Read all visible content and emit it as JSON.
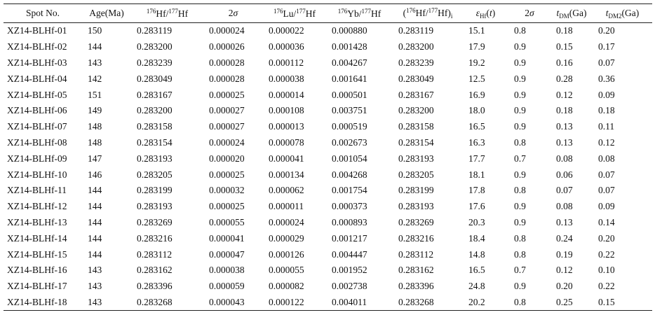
{
  "table": {
    "header": [
      [
        {
          "text": "Spot No."
        }
      ],
      [
        {
          "text": "Age(Ma)"
        }
      ],
      [
        {
          "text": "176",
          "style": "sup"
        },
        {
          "text": "Hf/"
        },
        {
          "text": "177",
          "style": "sup"
        },
        {
          "text": "Hf"
        }
      ],
      [
        {
          "text": "2"
        },
        {
          "text": "σ",
          "style": "i"
        }
      ],
      [
        {
          "text": "176",
          "style": "sup"
        },
        {
          "text": "Lu/"
        },
        {
          "text": "177",
          "style": "sup"
        },
        {
          "text": "Hf"
        }
      ],
      [
        {
          "text": "176",
          "style": "sup"
        },
        {
          "text": "Yb/"
        },
        {
          "text": "177",
          "style": "sup"
        },
        {
          "text": "Hf"
        }
      ],
      [
        {
          "text": "("
        },
        {
          "text": "176",
          "style": "sup"
        },
        {
          "text": "Hf/"
        },
        {
          "text": "177",
          "style": "sup"
        },
        {
          "text": "Hf)"
        },
        {
          "text": "i",
          "style": "sub"
        }
      ],
      [
        {
          "text": "ε",
          "style": "i"
        },
        {
          "text": "Hf",
          "style": "sub"
        },
        {
          "text": "("
        },
        {
          "text": "t",
          "style": "i"
        },
        {
          "text": ")"
        }
      ],
      [
        {
          "text": "2"
        },
        {
          "text": "σ",
          "style": "i"
        }
      ],
      [
        {
          "text": "t",
          "style": "i"
        },
        {
          "text": "DM",
          "style": "sub"
        },
        {
          "text": "(Ga)"
        }
      ],
      [
        {
          "text": "t",
          "style": "i"
        },
        {
          "text": "DM2",
          "style": "sub"
        },
        {
          "text": "(Ga)"
        }
      ]
    ],
    "rows": [
      [
        "XZ14-BLHf-01",
        "150",
        "0.283119",
        "0.000024",
        "0.000022",
        "0.000880",
        "0.283119",
        "15.1",
        "0.8",
        "0.18",
        "0.20"
      ],
      [
        "XZ14-BLHf-02",
        "144",
        "0.283200",
        "0.000026",
        "0.000036",
        "0.001428",
        "0.283200",
        "17.9",
        "0.9",
        "0.15",
        "0.17"
      ],
      [
        "XZ14-BLHf-03",
        "143",
        "0.283239",
        "0.000028",
        "0.000112",
        "0.004267",
        "0.283239",
        "19.2",
        "0.9",
        "0.16",
        "0.07"
      ],
      [
        "XZ14-BLHf-04",
        "142",
        "0.283049",
        "0.000028",
        "0.000038",
        "0.001641",
        "0.283049",
        "12.5",
        "0.9",
        "0.28",
        "0.36"
      ],
      [
        "XZ14-BLHf-05",
        "151",
        "0.283167",
        "0.000025",
        "0.000014",
        "0.000501",
        "0.283167",
        "16.9",
        "0.9",
        "0.12",
        "0.09"
      ],
      [
        "XZ14-BLHf-06",
        "149",
        "0.283200",
        "0.000027",
        "0.000108",
        "0.003751",
        "0.283200",
        "18.0",
        "0.9",
        "0.18",
        "0.18"
      ],
      [
        "XZ14-BLHf-07",
        "148",
        "0.283158",
        "0.000027",
        "0.000013",
        "0.000519",
        "0.283158",
        "16.5",
        "0.9",
        "0.13",
        "0.11"
      ],
      [
        "XZ14-BLHf-08",
        "148",
        "0.283154",
        "0.000024",
        "0.000078",
        "0.002673",
        "0.283154",
        "16.3",
        "0.8",
        "0.13",
        "0.12"
      ],
      [
        "XZ14-BLHf-09",
        "147",
        "0.283193",
        "0.000020",
        "0.000041",
        "0.001054",
        "0.283193",
        "17.7",
        "0.7",
        "0.08",
        "0.08"
      ],
      [
        "XZ14-BLHf-10",
        "146",
        "0.283205",
        "0.000025",
        "0.000134",
        "0.004268",
        "0.283205",
        "18.1",
        "0.9",
        "0.06",
        "0.07"
      ],
      [
        "XZ14-BLHf-11",
        "144",
        "0.283199",
        "0.000032",
        "0.000062",
        "0.001754",
        "0.283199",
        "17.8",
        "0.8",
        "0.07",
        "0.07"
      ],
      [
        "XZ14-BLHf-12",
        "144",
        "0.283193",
        "0.000025",
        "0.000011",
        "0.000373",
        "0.283193",
        "17.6",
        "0.9",
        "0.08",
        "0.09"
      ],
      [
        "XZ14-BLHf-13",
        "144",
        "0.283269",
        "0.000055",
        "0.000024",
        "0.000893",
        "0.283269",
        "20.3",
        "0.9",
        "0.13",
        "0.14"
      ],
      [
        "XZ14-BLHf-14",
        "144",
        "0.283216",
        "0.000041",
        "0.000029",
        "0.001217",
        "0.283216",
        "18.4",
        "0.8",
        "0.24",
        "0.20"
      ],
      [
        "XZ14-BLHf-15",
        "144",
        "0.283112",
        "0.000047",
        "0.000126",
        "0.004447",
        "0.283112",
        "14.8",
        "0.8",
        "0.19",
        "0.22"
      ],
      [
        "XZ14-BLHf-16",
        "143",
        "0.283162",
        "0.000038",
        "0.000055",
        "0.001952",
        "0.283162",
        "16.5",
        "0.7",
        "0.12",
        "0.10"
      ],
      [
        "XZ14-BLHf-17",
        "143",
        "0.283396",
        "0.000059",
        "0.000082",
        "0.002738",
        "0.283396",
        "24.8",
        "0.9",
        "0.20",
        "0.22"
      ],
      [
        "XZ14-BLHf-18",
        "143",
        "0.283268",
        "0.000043",
        "0.000122",
        "0.004011",
        "0.283268",
        "20.2",
        "0.8",
        "0.25",
        "0.15"
      ]
    ]
  }
}
